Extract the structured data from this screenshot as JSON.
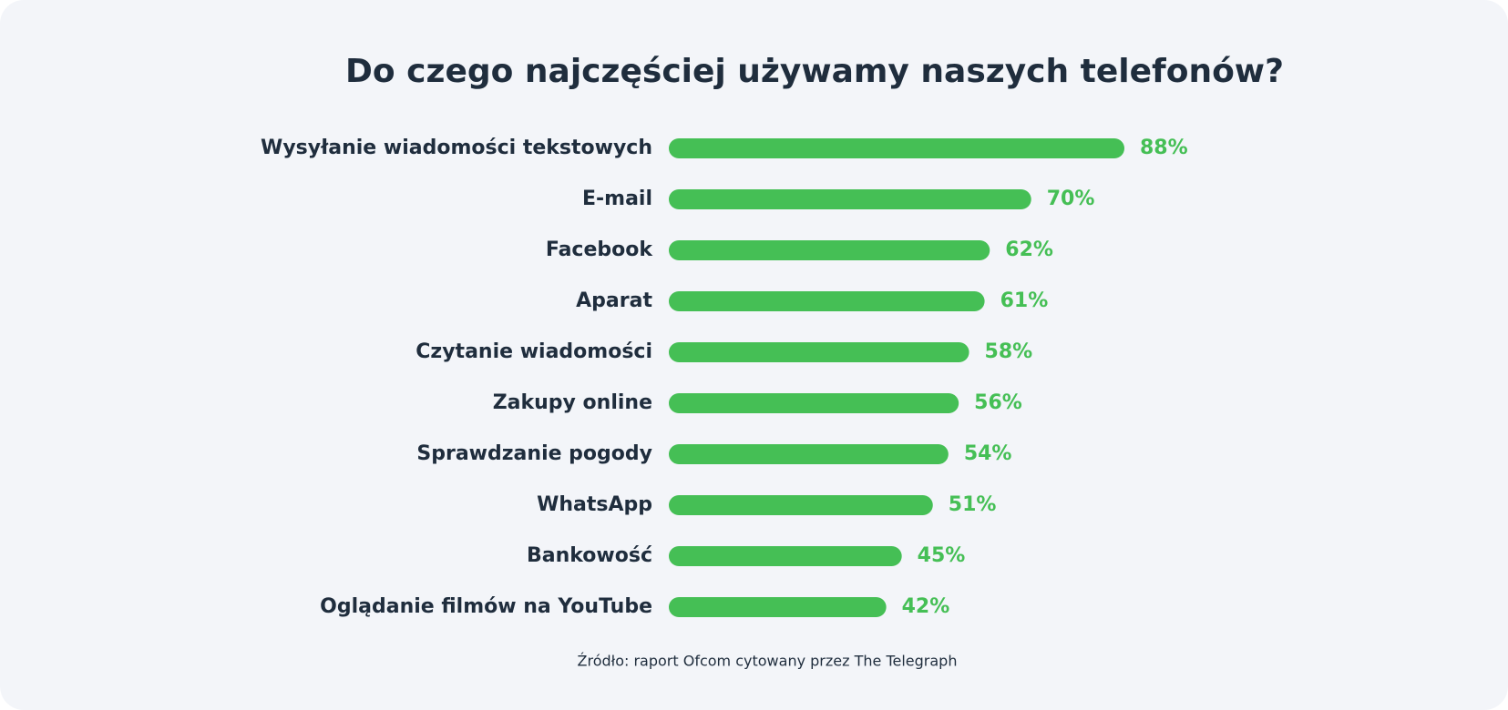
{
  "chart_data": {
    "type": "bar",
    "orientation": "horizontal",
    "title": "Do czego najczęściej używamy naszych telefonów?",
    "categories": [
      "Wysyłanie wiadomości tekstowych",
      "E-mail",
      "Facebook",
      "Aparat",
      "Czytanie wiadomości",
      "Zakupy online",
      "Sprawdzanie pogody",
      "WhatsApp",
      "Bankowość",
      "Oglądanie filmów na YouTube"
    ],
    "values": [
      88,
      70,
      62,
      61,
      58,
      56,
      54,
      51,
      45,
      42
    ],
    "value_labels": [
      "88%",
      "70%",
      "62%",
      "61%",
      "58%",
      "56%",
      "54%",
      "51%",
      "45%",
      "42%"
    ],
    "color": "#45bf55",
    "source": "Źródło: raport Ofcom cytowany przez The Telegraph"
  }
}
